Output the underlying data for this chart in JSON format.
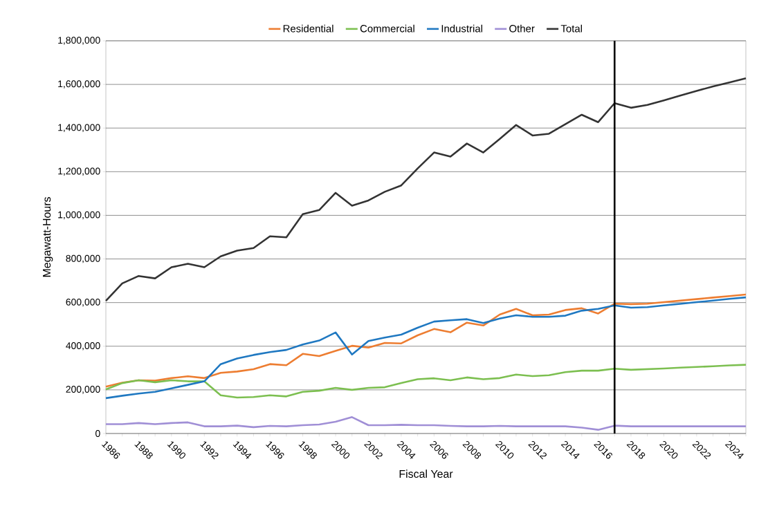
{
  "chart_data": {
    "type": "line",
    "xlabel": "Fiscal Year",
    "ylabel": "Megawatt-Hours",
    "x": [
      1986,
      1987,
      1988,
      1989,
      1990,
      1991,
      1992,
      1993,
      1994,
      1995,
      1996,
      1997,
      1998,
      1999,
      2000,
      2001,
      2002,
      2003,
      2004,
      2005,
      2006,
      2007,
      2008,
      2009,
      2010,
      2011,
      2012,
      2013,
      2014,
      2015,
      2016,
      2017,
      2018,
      2019,
      2020,
      2021,
      2022,
      2023,
      2024,
      2025
    ],
    "series": [
      {
        "name": "Residential",
        "color": "#ed7d31",
        "values": [
          215000,
          233000,
          244000,
          242000,
          254000,
          262000,
          254000,
          278000,
          284000,
          295000,
          318000,
          313000,
          365000,
          355000,
          379000,
          402000,
          394000,
          415000,
          413000,
          450000,
          479000,
          464000,
          508000,
          495000,
          545000,
          571000,
          542000,
          545000,
          566000,
          574000,
          550000,
          595000,
          593000,
          595000,
          602000,
          609000,
          616000,
          623000,
          630000,
          637000
        ]
      },
      {
        "name": "Commercial",
        "color": "#7cbf50",
        "values": [
          202000,
          231000,
          244000,
          235000,
          244000,
          239000,
          239000,
          175000,
          165000,
          167000,
          175000,
          170000,
          191000,
          196000,
          209000,
          200000,
          209000,
          212000,
          231000,
          249000,
          253000,
          244000,
          257000,
          249000,
          254000,
          270000,
          263000,
          267000,
          281000,
          288000,
          288000,
          297000,
          292000,
          295000,
          298000,
          302000,
          305000,
          308000,
          312000,
          315000
        ]
      },
      {
        "name": "Industrial",
        "color": "#1f78c1",
        "values": [
          162000,
          173000,
          183000,
          191000,
          207000,
          223000,
          239000,
          318000,
          344000,
          360000,
          373000,
          383000,
          408000,
          426000,
          463000,
          362000,
          424000,
          440000,
          453000,
          485000,
          513000,
          519000,
          524000,
          506000,
          527000,
          542000,
          535000,
          535000,
          540000,
          563000,
          571000,
          587000,
          577000,
          579000,
          587000,
          594000,
          602000,
          609000,
          617000,
          624000
        ]
      },
      {
        "name": "Other",
        "color": "#a08fd6",
        "values": [
          43000,
          43000,
          48000,
          43000,
          48000,
          51000,
          33000,
          33000,
          36000,
          29000,
          35000,
          33000,
          38000,
          41000,
          54000,
          75000,
          38000,
          38000,
          40000,
          38000,
          38000,
          35000,
          33000,
          33000,
          35000,
          33000,
          33000,
          33000,
          33000,
          27000,
          17000,
          36000,
          33000,
          33000,
          33000,
          33000,
          33000,
          33000,
          33000,
          33000
        ]
      },
      {
        "name": "Total",
        "color": "#333333",
        "values": [
          608000,
          688000,
          722000,
          711000,
          762000,
          778000,
          762000,
          812000,
          838000,
          850000,
          904000,
          899000,
          1005000,
          1024000,
          1103000,
          1044000,
          1068000,
          1108000,
          1137000,
          1215000,
          1288000,
          1269000,
          1329000,
          1288000,
          1350000,
          1414000,
          1366000,
          1374000,
          1418000,
          1461000,
          1427000,
          1514000,
          1493000,
          1506000,
          1527000,
          1549000,
          1570000,
          1591000,
          1609000,
          1628000
        ]
      }
    ],
    "xlim": [
      1986,
      2025
    ],
    "xticks": [
      1986,
      {
        "value": 1987,
        "label": null
      },
      1988,
      {
        "value": 1989,
        "label": null
      },
      1990,
      {
        "value": 1991,
        "label": null
      },
      1992,
      {
        "value": 1993,
        "label": null
      },
      1994,
      {
        "value": 1995,
        "label": null
      },
      1996,
      {
        "value": 1997,
        "label": null
      },
      1998,
      {
        "value": 1999,
        "label": null
      },
      2000,
      {
        "value": 2001,
        "label": null
      },
      2002,
      {
        "value": 2003,
        "label": null
      },
      2004,
      {
        "value": 2005,
        "label": null
      },
      2006,
      {
        "value": 2007,
        "label": null
      },
      2008,
      {
        "value": 2009,
        "label": null
      },
      2010,
      {
        "value": 2011,
        "label": null
      },
      2012,
      {
        "value": 2013,
        "label": null
      },
      2014,
      {
        "value": 2015,
        "label": null
      },
      2016,
      {
        "value": 2017,
        "label": null
      },
      2018,
      {
        "value": 2019,
        "label": null
      },
      2020,
      {
        "value": 2021,
        "label": null
      },
      2022,
      {
        "value": 2023,
        "label": null
      },
      2024,
      {
        "value": 2025,
        "label": null
      }
    ],
    "ylim": [
      0,
      1800000
    ],
    "yticks": [
      0,
      {
        "value": 200000,
        "label": "200,000"
      },
      {
        "value": 400000,
        "label": "400,000"
      },
      {
        "value": 600000,
        "label": "600,000"
      },
      {
        "value": 800000,
        "label": "800,000"
      },
      {
        "value": 1000000,
        "label": "1,000,000"
      },
      {
        "value": 1200000,
        "label": "1,200,000"
      },
      {
        "value": 1400000,
        "label": "1,400,000"
      },
      {
        "value": 1600000,
        "label": "1,600,000"
      },
      {
        "value": 1800000,
        "label": "1,800,000"
      }
    ],
    "grid": "y",
    "legend": "top",
    "ref_lines": [
      {
        "axis": "x",
        "value": 2017,
        "color": "#000000"
      }
    ]
  }
}
